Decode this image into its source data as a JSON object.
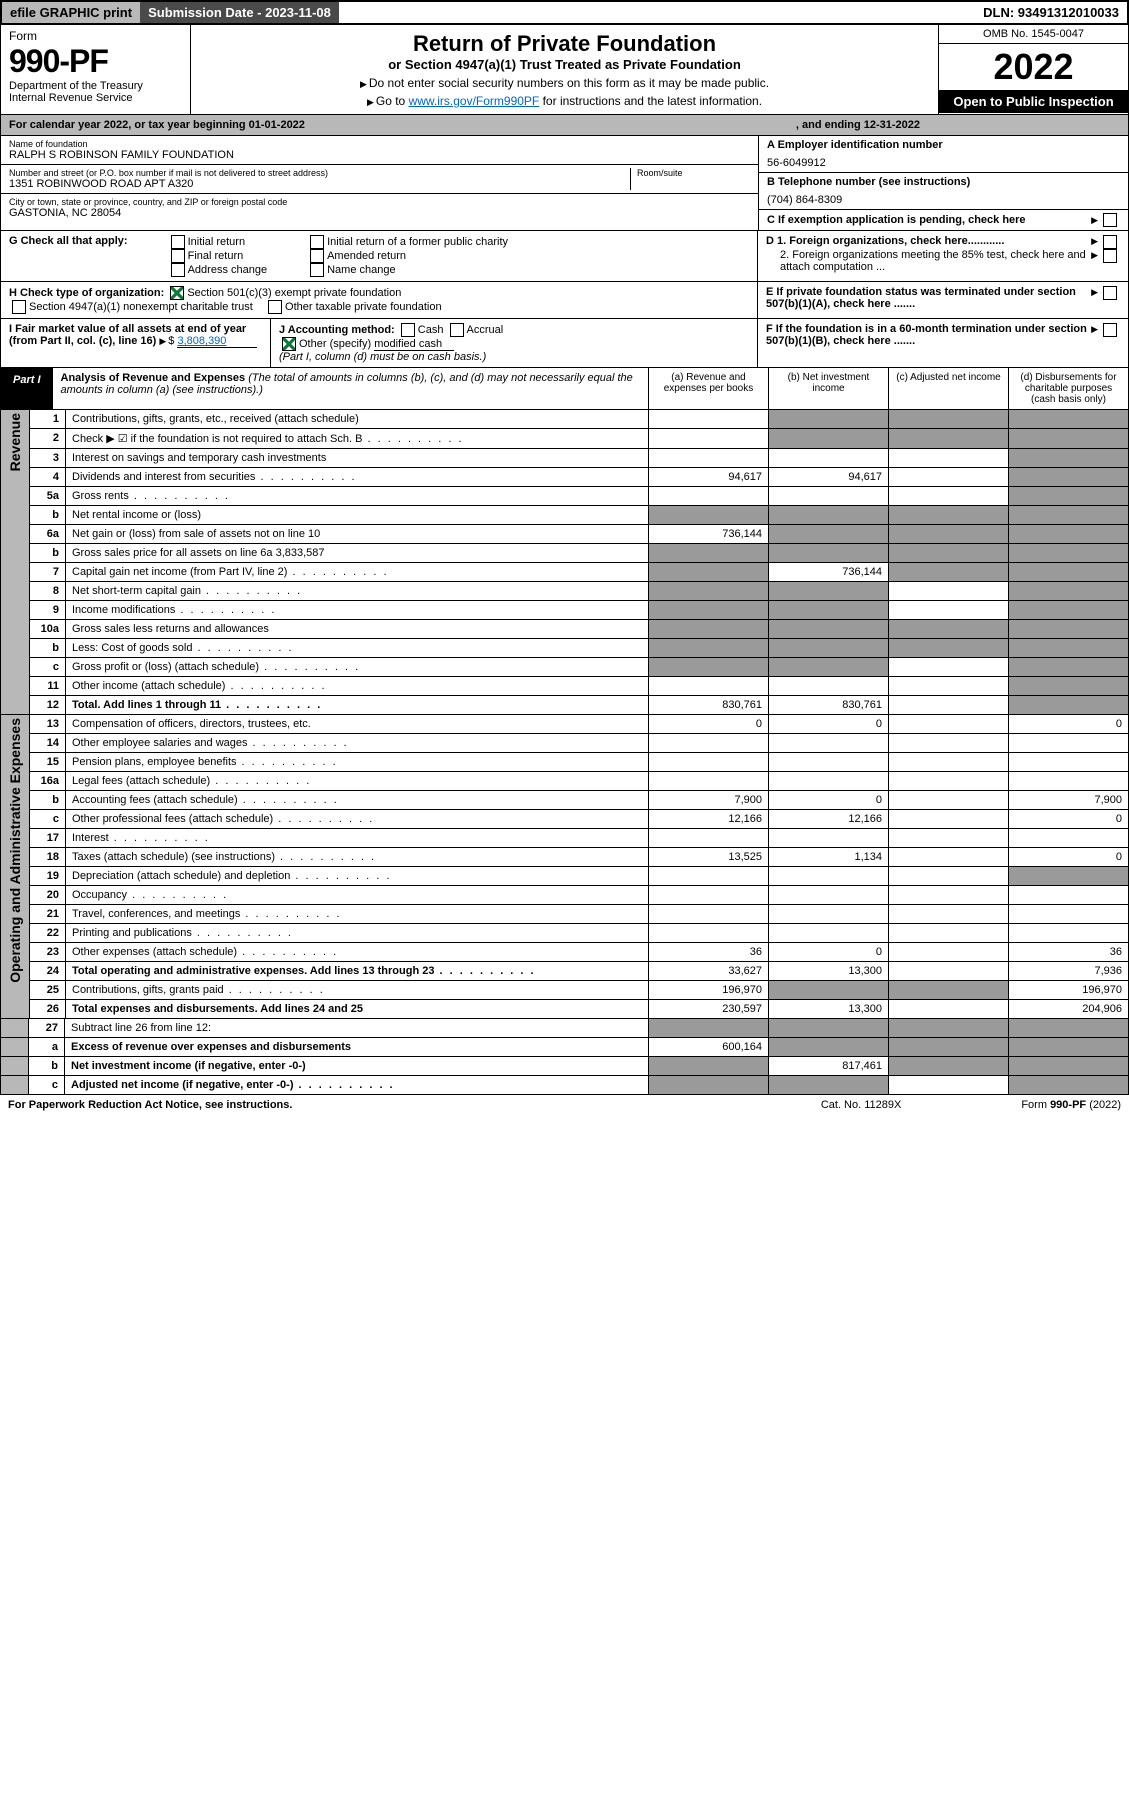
{
  "topbar": {
    "efile": "efile GRAPHIC print",
    "submission": "Submission Date - 2023-11-08",
    "dln": "DLN: 93491312010033"
  },
  "header": {
    "form_label": "Form",
    "form_num": "990-PF",
    "dept": "Department of the Treasury",
    "irs": "Internal Revenue Service",
    "title": "Return of Private Foundation",
    "subtitle": "or Section 4947(a)(1) Trust Treated as Private Foundation",
    "instr1": "Do not enter social security numbers on this form as it may be made public.",
    "instr2_pre": "Go to ",
    "instr2_link": "www.irs.gov/Form990PF",
    "instr2_post": " for instructions and the latest information.",
    "omb": "OMB No. 1545-0047",
    "year": "2022",
    "open": "Open to Public Inspection"
  },
  "cal": {
    "begin": "For calendar year 2022, or tax year beginning 01-01-2022",
    "end": ", and ending 12-31-2022"
  },
  "info": {
    "name_label": "Name of foundation",
    "name": "RALPH S ROBINSON FAMILY FOUNDATION",
    "addr_label": "Number and street (or P.O. box number if mail is not delivered to street address)",
    "addr": "1351 ROBINWOOD ROAD APT A320",
    "room_label": "Room/suite",
    "city_label": "City or town, state or province, country, and ZIP or foreign postal code",
    "city": "GASTONIA, NC  28054",
    "a_label": "A Employer identification number",
    "a_val": "56-6049912",
    "b_label": "B Telephone number (see instructions)",
    "b_val": "(704) 864-8309",
    "c_label": "C If exemption application is pending, check here"
  },
  "g": {
    "label": "G Check all that apply:",
    "o1": "Initial return",
    "o2": "Final return",
    "o3": "Address change",
    "o4": "Initial return of a former public charity",
    "o5": "Amended return",
    "o6": "Name change"
  },
  "d": {
    "d1": "D 1. Foreign organizations, check here............",
    "d2": "2. Foreign organizations meeting the 85% test, check here and attach computation ..."
  },
  "h": {
    "label": "H Check type of organization:",
    "o1": "Section 501(c)(3) exempt private foundation",
    "o2": "Section 4947(a)(1) nonexempt charitable trust",
    "o3": "Other taxable private foundation"
  },
  "e_label": "E If private foundation status was terminated under section 507(b)(1)(A), check here .......",
  "i": {
    "label": "I Fair market value of all assets at end of year (from Part II, col. (c), line 16)",
    "val": "3,808,390"
  },
  "j": {
    "label": "J Accounting method:",
    "cash": "Cash",
    "accrual": "Accrual",
    "other": "Other (specify)",
    "other_val": "modified cash",
    "note": "(Part I, column (d) must be on cash basis.)"
  },
  "f_label": "F If the foundation is in a 60-month termination under section 507(b)(1)(B), check here .......",
  "part1": {
    "label": "Part I",
    "title": "Analysis of Revenue and Expenses",
    "note": "(The total of amounts in columns (b), (c), and (d) may not necessarily equal the amounts in column (a) (see instructions).)",
    "col_a": "(a) Revenue and expenses per books",
    "col_b": "(b) Net investment income",
    "col_c": "(c) Adjusted net income",
    "col_d": "(d) Disbursements for charitable purposes (cash basis only)"
  },
  "sections": {
    "revenue": "Revenue",
    "expenses": "Operating and Administrative Expenses"
  },
  "rows": [
    {
      "n": "1",
      "d": "Contributions, gifts, grants, etc., received (attach schedule)",
      "a": "",
      "b": "",
      "c": "",
      "dd": "",
      "sb": true,
      "sc": true,
      "sd": true
    },
    {
      "n": "2",
      "d": "Check ▶ ☑ if the foundation is not required to attach Sch. B",
      "a": "",
      "b": "",
      "c": "",
      "dd": "",
      "sb": true,
      "sc": true,
      "sd": true,
      "dots": true
    },
    {
      "n": "3",
      "d": "Interest on savings and temporary cash investments",
      "a": "",
      "b": "",
      "c": "",
      "dd": "",
      "sd": true
    },
    {
      "n": "4",
      "d": "Dividends and interest from securities",
      "a": "94,617",
      "b": "94,617",
      "c": "",
      "dd": "",
      "sd": true,
      "dots": true
    },
    {
      "n": "5a",
      "d": "Gross rents",
      "a": "",
      "b": "",
      "c": "",
      "dd": "",
      "sd": true,
      "dots": true
    },
    {
      "n": "b",
      "d": "Net rental income or (loss)",
      "a": "",
      "b": "",
      "c": "",
      "dd": "",
      "sa": true,
      "sb": true,
      "sc": true,
      "sd": true
    },
    {
      "n": "6a",
      "d": "Net gain or (loss) from sale of assets not on line 10",
      "a": "736,144",
      "b": "",
      "c": "",
      "dd": "",
      "sb": true,
      "sc": true,
      "sd": true
    },
    {
      "n": "b",
      "d": "Gross sales price for all assets on line 6a        3,833,587",
      "a": "",
      "b": "",
      "c": "",
      "dd": "",
      "sa": true,
      "sb": true,
      "sc": true,
      "sd": true
    },
    {
      "n": "7",
      "d": "Capital gain net income (from Part IV, line 2)",
      "a": "",
      "b": "736,144",
      "c": "",
      "dd": "",
      "sa": true,
      "sc": true,
      "sd": true,
      "dots": true
    },
    {
      "n": "8",
      "d": "Net short-term capital gain",
      "a": "",
      "b": "",
      "c": "",
      "dd": "",
      "sa": true,
      "sb": true,
      "sd": true,
      "dots": true
    },
    {
      "n": "9",
      "d": "Income modifications",
      "a": "",
      "b": "",
      "c": "",
      "dd": "",
      "sa": true,
      "sb": true,
      "sd": true,
      "dots": true
    },
    {
      "n": "10a",
      "d": "Gross sales less returns and allowances",
      "a": "",
      "b": "",
      "c": "",
      "dd": "",
      "sa": true,
      "sb": true,
      "sc": true,
      "sd": true
    },
    {
      "n": "b",
      "d": "Less: Cost of goods sold",
      "a": "",
      "b": "",
      "c": "",
      "dd": "",
      "sa": true,
      "sb": true,
      "sc": true,
      "sd": true,
      "dots": true
    },
    {
      "n": "c",
      "d": "Gross profit or (loss) (attach schedule)",
      "a": "",
      "b": "",
      "c": "",
      "dd": "",
      "sa": true,
      "sb": true,
      "sd": true,
      "dots": true
    },
    {
      "n": "11",
      "d": "Other income (attach schedule)",
      "a": "",
      "b": "",
      "c": "",
      "dd": "",
      "sd": true,
      "dots": true
    },
    {
      "n": "12",
      "d": "Total. Add lines 1 through 11",
      "a": "830,761",
      "b": "830,761",
      "c": "",
      "dd": "",
      "sd": true,
      "bold": true,
      "dots": true
    }
  ],
  "exp_rows": [
    {
      "n": "13",
      "d": "Compensation of officers, directors, trustees, etc.",
      "a": "0",
      "b": "0",
      "c": "",
      "dd": "0"
    },
    {
      "n": "14",
      "d": "Other employee salaries and wages",
      "a": "",
      "b": "",
      "c": "",
      "dd": "",
      "dots": true
    },
    {
      "n": "15",
      "d": "Pension plans, employee benefits",
      "a": "",
      "b": "",
      "c": "",
      "dd": "",
      "dots": true
    },
    {
      "n": "16a",
      "d": "Legal fees (attach schedule)",
      "a": "",
      "b": "",
      "c": "",
      "dd": "",
      "dots": true
    },
    {
      "n": "b",
      "d": "Accounting fees (attach schedule)",
      "a": "7,900",
      "b": "0",
      "c": "",
      "dd": "7,900",
      "dots": true
    },
    {
      "n": "c",
      "d": "Other professional fees (attach schedule)",
      "a": "12,166",
      "b": "12,166",
      "c": "",
      "dd": "0",
      "dots": true
    },
    {
      "n": "17",
      "d": "Interest",
      "a": "",
      "b": "",
      "c": "",
      "dd": "",
      "dots": true
    },
    {
      "n": "18",
      "d": "Taxes (attach schedule) (see instructions)",
      "a": "13,525",
      "b": "1,134",
      "c": "",
      "dd": "0",
      "dots": true
    },
    {
      "n": "19",
      "d": "Depreciation (attach schedule) and depletion",
      "a": "",
      "b": "",
      "c": "",
      "dd": "",
      "sd": true,
      "dots": true
    },
    {
      "n": "20",
      "d": "Occupancy",
      "a": "",
      "b": "",
      "c": "",
      "dd": "",
      "dots": true
    },
    {
      "n": "21",
      "d": "Travel, conferences, and meetings",
      "a": "",
      "b": "",
      "c": "",
      "dd": "",
      "dots": true
    },
    {
      "n": "22",
      "d": "Printing and publications",
      "a": "",
      "b": "",
      "c": "",
      "dd": "",
      "dots": true
    },
    {
      "n": "23",
      "d": "Other expenses (attach schedule)",
      "a": "36",
      "b": "0",
      "c": "",
      "dd": "36",
      "dots": true
    },
    {
      "n": "24",
      "d": "Total operating and administrative expenses. Add lines 13 through 23",
      "a": "33,627",
      "b": "13,300",
      "c": "",
      "dd": "7,936",
      "bold": true,
      "dots": true
    },
    {
      "n": "25",
      "d": "Contributions, gifts, grants paid",
      "a": "196,970",
      "b": "",
      "c": "",
      "dd": "196,970",
      "sb": true,
      "sc": true,
      "dots": true
    },
    {
      "n": "26",
      "d": "Total expenses and disbursements. Add lines 24 and 25",
      "a": "230,597",
      "b": "13,300",
      "c": "",
      "dd": "204,906",
      "bold": true
    }
  ],
  "final_rows": [
    {
      "n": "27",
      "d": "Subtract line 26 from line 12:",
      "a": "",
      "b": "",
      "c": "",
      "dd": "",
      "sa": true,
      "sb": true,
      "sc": true,
      "sd": true
    },
    {
      "n": "a",
      "d": "Excess of revenue over expenses and disbursements",
      "a": "600,164",
      "b": "",
      "c": "",
      "dd": "",
      "sb": true,
      "sc": true,
      "sd": true,
      "bold": true
    },
    {
      "n": "b",
      "d": "Net investment income (if negative, enter -0-)",
      "a": "",
      "b": "817,461",
      "c": "",
      "dd": "",
      "sa": true,
      "sc": true,
      "sd": true,
      "bold": true
    },
    {
      "n": "c",
      "d": "Adjusted net income (if negative, enter -0-)",
      "a": "",
      "b": "",
      "c": "",
      "dd": "",
      "sa": true,
      "sb": true,
      "sd": true,
      "bold": true,
      "dots": true
    }
  ],
  "footer": {
    "left": "For Paperwork Reduction Act Notice, see instructions.",
    "mid": "Cat. No. 11289X",
    "right": "Form 990-PF (2022)"
  }
}
